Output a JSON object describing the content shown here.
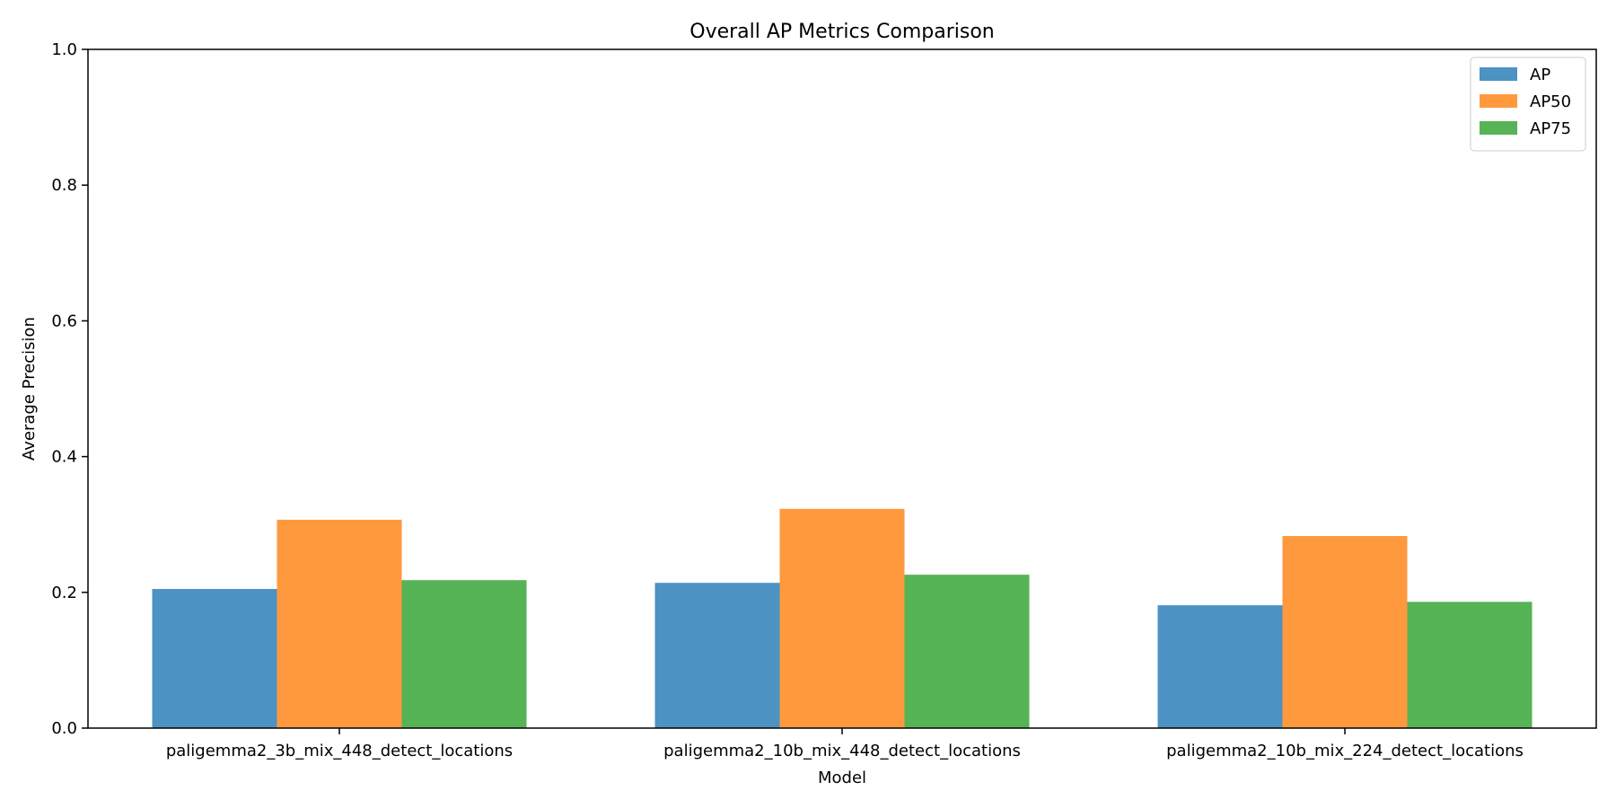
{
  "chart_data": {
    "type": "bar",
    "title": "Overall AP Metrics Comparison",
    "xlabel": "Model",
    "ylabel": "Average Precision",
    "ylim": [
      0,
      1.0
    ],
    "yticks": [
      "0.0",
      "0.2",
      "0.4",
      "0.6",
      "0.8",
      "1.0"
    ],
    "categories": [
      "paligemma2_3b_mix_448_detect_locations",
      "paligemma2_10b_mix_448_detect_locations",
      "paligemma2_10b_mix_224_detect_locations"
    ],
    "series": [
      {
        "name": "AP",
        "color": "#1f77b4",
        "values": [
          0.205,
          0.214,
          0.181
        ]
      },
      {
        "name": "AP50",
        "color": "#ff7f0e",
        "values": [
          0.307,
          0.323,
          0.283
        ]
      },
      {
        "name": "AP75",
        "color": "#2ca02c",
        "values": [
          0.218,
          0.226,
          0.186
        ]
      }
    ],
    "bar_opacity": 0.8,
    "grid": false,
    "legend_position": "top-right"
  }
}
